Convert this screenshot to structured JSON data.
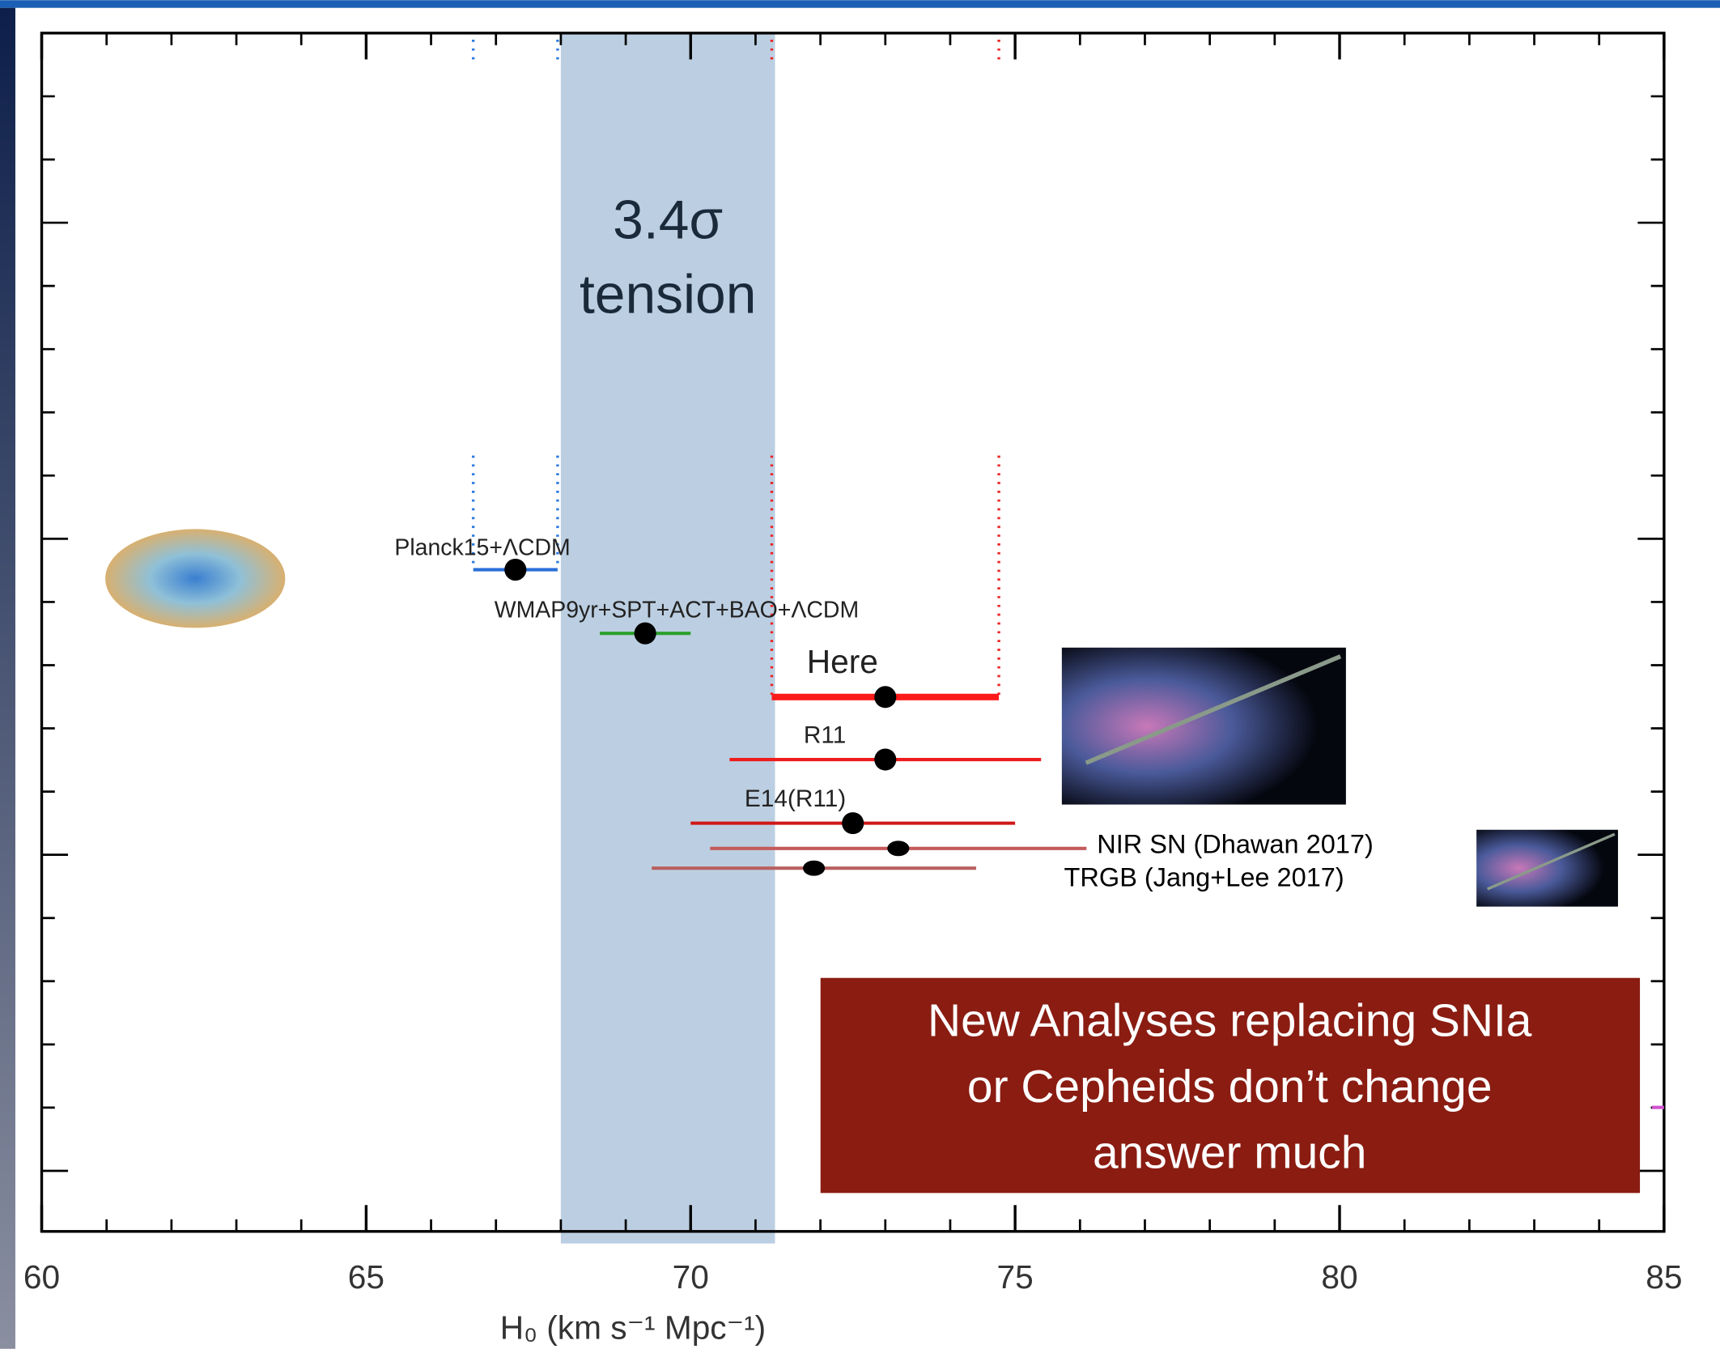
{
  "chart_data": {
    "type": "errorbar",
    "xlabel": "H₀ (km s⁻¹ Mpc⁻¹)",
    "xlim": [
      60,
      85
    ],
    "xticks": [
      60,
      65,
      70,
      75,
      80,
      85
    ],
    "categories": [
      "Planck15+ΛCDM",
      "WMAP9yr+SPT+ACT+BAO+ΛCDM",
      "Here",
      "R11",
      "E14(R11)",
      "NIR SN (Dhawan 2017)",
      "TRGB (Jang+Lee 2017)"
    ],
    "values": [
      67.3,
      69.3,
      73.0,
      73.0,
      72.5,
      73.2,
      71.9
    ],
    "errors": [
      0.65,
      0.7,
      1.75,
      2.4,
      2.5,
      2.9,
      2.5
    ],
    "colors": [
      "#2a6fd8",
      "#2ca02c",
      "#ff1a1a",
      "#ee1c1c",
      "#d01818",
      "#c45a5a",
      "#b86060"
    ],
    "guides": [
      {
        "value": 66.65,
        "color": "#2a7ae0"
      },
      {
        "value": 67.95,
        "color": "#2a7ae0"
      },
      {
        "value": 71.25,
        "color": "#ee2222"
      },
      {
        "value": 74.75,
        "color": "#ee2222"
      }
    ],
    "band": {
      "from": 68.0,
      "to": 71.3,
      "color": "#bccfe2",
      "label": [
        "3.4σ",
        "tension"
      ]
    },
    "note": [
      "New Analyses replacing SNIa",
      "or Cepheids don’t change",
      "answer much"
    ]
  }
}
